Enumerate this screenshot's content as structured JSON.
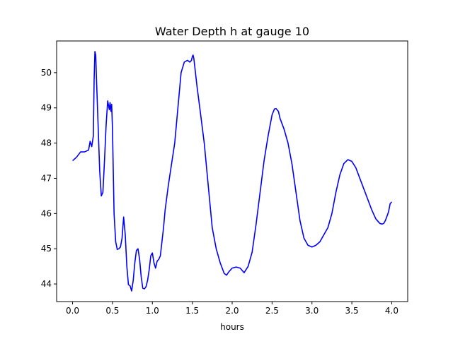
{
  "chart_data": {
    "type": "line",
    "title": "Water Depth h at gauge 10",
    "xlabel": "hours",
    "ylabel": "",
    "xlim": [
      -0.2,
      4.2
    ],
    "ylim": [
      43.5,
      50.9
    ],
    "xticks": [
      0.0,
      0.5,
      1.0,
      1.5,
      2.0,
      2.5,
      3.0,
      3.5,
      4.0
    ],
    "xtick_labels": [
      "0.0",
      "0.5",
      "1.0",
      "1.5",
      "2.0",
      "2.5",
      "3.0",
      "3.5",
      "4.0"
    ],
    "yticks": [
      44,
      45,
      46,
      47,
      48,
      49,
      50
    ],
    "ytick_labels": [
      "44",
      "45",
      "46",
      "47",
      "48",
      "49",
      "50"
    ],
    "grid": false,
    "series": [
      {
        "color": "#0000ff",
        "x": [
          0.0,
          0.05,
          0.1,
          0.15,
          0.2,
          0.22,
          0.24,
          0.26,
          0.27,
          0.28,
          0.29,
          0.3,
          0.32,
          0.34,
          0.36,
          0.38,
          0.4,
          0.42,
          0.44,
          0.46,
          0.47,
          0.48,
          0.49,
          0.5,
          0.51,
          0.52,
          0.54,
          0.56,
          0.58,
          0.6,
          0.62,
          0.64,
          0.66,
          0.68,
          0.7,
          0.72,
          0.74,
          0.76,
          0.78,
          0.8,
          0.82,
          0.84,
          0.86,
          0.88,
          0.9,
          0.92,
          0.94,
          0.96,
          0.98,
          1.0,
          1.02,
          1.04,
          1.06,
          1.08,
          1.1,
          1.12,
          1.14,
          1.16,
          1.2,
          1.24,
          1.28,
          1.32,
          1.36,
          1.4,
          1.44,
          1.47,
          1.49,
          1.5,
          1.51,
          1.52,
          1.53,
          1.54,
          1.55,
          1.56,
          1.6,
          1.65,
          1.7,
          1.75,
          1.8,
          1.85,
          1.9,
          1.93,
          1.96,
          2.0,
          2.05,
          2.1,
          2.15,
          2.2,
          2.25,
          2.3,
          2.35,
          2.4,
          2.45,
          2.5,
          2.53,
          2.55,
          2.58,
          2.6,
          2.65,
          2.7,
          2.75,
          2.8,
          2.85,
          2.9,
          2.95,
          3.0,
          3.05,
          3.1,
          3.15,
          3.2,
          3.25,
          3.3,
          3.35,
          3.4,
          3.45,
          3.5,
          3.55,
          3.6,
          3.65,
          3.7,
          3.75,
          3.8,
          3.85,
          3.88,
          3.9,
          3.92,
          3.94,
          3.96,
          3.98,
          4.0
        ],
        "y": [
          47.5,
          47.6,
          47.75,
          47.75,
          47.8,
          48.05,
          47.9,
          48.2,
          49.8,
          50.6,
          50.5,
          49.8,
          48.5,
          47.2,
          46.5,
          46.6,
          47.5,
          48.5,
          49.2,
          48.95,
          49.15,
          48.9,
          49.1,
          48.4,
          47.2,
          46.0,
          45.2,
          44.98,
          45.0,
          45.05,
          45.3,
          45.9,
          45.4,
          44.5,
          43.98,
          43.95,
          43.8,
          44.1,
          44.6,
          44.95,
          45.0,
          44.7,
          44.2,
          43.88,
          43.86,
          43.92,
          44.1,
          44.4,
          44.8,
          44.88,
          44.6,
          44.45,
          44.65,
          44.7,
          44.8,
          45.2,
          45.6,
          46.1,
          46.8,
          47.4,
          48.0,
          49.0,
          50.0,
          50.3,
          50.35,
          50.3,
          50.35,
          50.45,
          50.5,
          50.4,
          50.2,
          50.0,
          49.8,
          49.6,
          48.9,
          48.0,
          46.8,
          45.6,
          45.0,
          44.6,
          44.3,
          44.25,
          44.35,
          44.45,
          44.48,
          44.45,
          44.32,
          44.5,
          44.9,
          45.7,
          46.6,
          47.5,
          48.2,
          48.8,
          48.97,
          48.98,
          48.9,
          48.7,
          48.4,
          48.0,
          47.4,
          46.6,
          45.8,
          45.3,
          45.1,
          45.05,
          45.1,
          45.2,
          45.4,
          45.6,
          46.0,
          46.6,
          47.1,
          47.42,
          47.53,
          47.48,
          47.3,
          47.0,
          46.7,
          46.4,
          46.1,
          45.85,
          45.72,
          45.7,
          45.72,
          45.8,
          45.92,
          46.05,
          46.28,
          46.33
        ]
      }
    ]
  }
}
